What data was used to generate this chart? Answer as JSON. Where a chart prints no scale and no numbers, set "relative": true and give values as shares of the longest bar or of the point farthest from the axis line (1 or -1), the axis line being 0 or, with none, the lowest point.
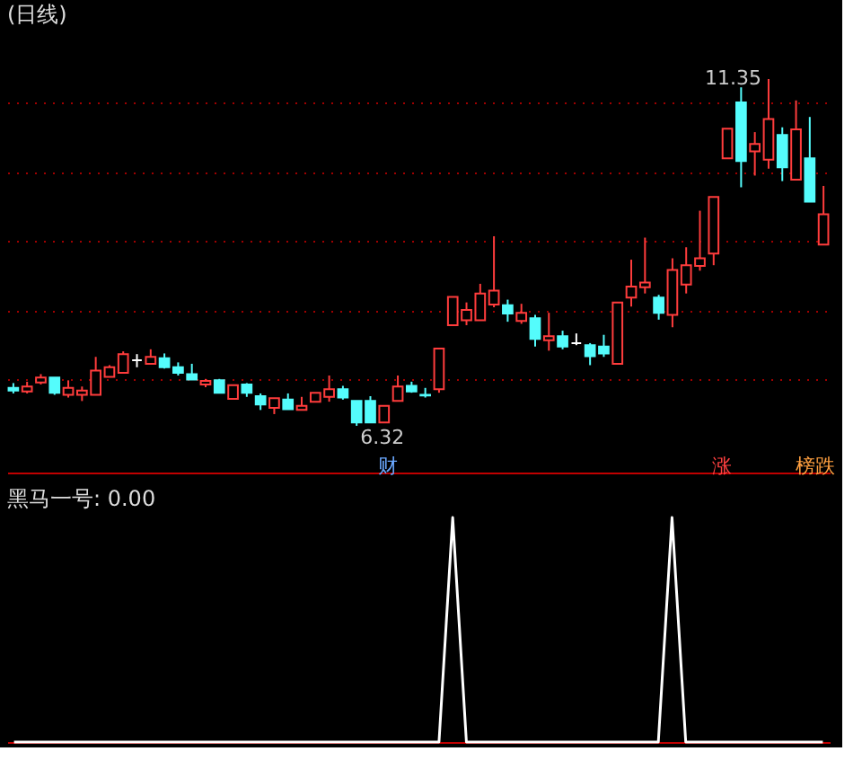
{
  "chart_data": [
    {
      "type": "candlestick",
      "title": "(日线)",
      "categories": [
        null,
        null,
        null,
        null,
        null,
        null,
        null,
        null,
        null,
        null,
        null,
        null,
        null,
        null,
        null,
        null,
        null,
        null,
        null,
        null,
        null,
        null,
        null,
        null,
        null,
        null,
        null,
        null,
        null,
        null,
        null,
        null,
        null,
        null,
        null,
        null,
        null,
        null,
        null,
        null,
        null,
        null,
        null,
        null,
        null,
        null,
        null,
        null,
        null,
        null,
        null,
        null,
        null,
        null,
        null,
        null,
        null,
        null,
        null,
        null
      ],
      "ohlc": [
        [
          6.87,
          6.94,
          6.79,
          6.83
        ],
        [
          6.82,
          6.96,
          6.79,
          6.89
        ],
        [
          6.95,
          7.07,
          6.92,
          7.02
        ],
        [
          7.02,
          7.02,
          6.77,
          6.8
        ],
        [
          6.77,
          6.98,
          6.73,
          6.87
        ],
        [
          6.77,
          6.89,
          6.68,
          6.83
        ],
        [
          6.77,
          7.32,
          6.77,
          7.12
        ],
        [
          7.03,
          7.2,
          7.03,
          7.17
        ],
        [
          7.09,
          7.4,
          7.09,
          7.36
        ],
        [
          7.27,
          7.36,
          7.17,
          7.27
        ],
        [
          7.22,
          7.43,
          7.22,
          7.32
        ],
        [
          7.3,
          7.37,
          7.15,
          7.17
        ],
        [
          7.17,
          7.24,
          7.05,
          7.09
        ],
        [
          7.07,
          7.22,
          6.99,
          6.99
        ],
        [
          6.92,
          7.0,
          6.88,
          6.97
        ],
        [
          6.98,
          7.0,
          6.8,
          6.8
        ],
        [
          6.71,
          6.91,
          6.71,
          6.91
        ],
        [
          6.92,
          6.94,
          6.74,
          6.8
        ],
        [
          6.75,
          6.79,
          6.55,
          6.63
        ],
        [
          6.58,
          6.72,
          6.49,
          6.72
        ],
        [
          6.7,
          6.79,
          6.56,
          6.56
        ],
        [
          6.55,
          6.74,
          6.55,
          6.61
        ],
        [
          6.67,
          6.8,
          6.67,
          6.8
        ],
        [
          6.74,
          7.05,
          6.67,
          6.85
        ],
        [
          6.85,
          6.9,
          6.7,
          6.73
        ],
        [
          6.68,
          6.68,
          6.32,
          6.37
        ],
        [
          6.68,
          6.75,
          6.36,
          6.37
        ],
        [
          6.37,
          6.61,
          6.37,
          6.61
        ],
        [
          6.68,
          7.05,
          6.68,
          6.89
        ],
        [
          6.9,
          6.96,
          6.8,
          6.82
        ],
        [
          6.77,
          6.87,
          6.73,
          6.76
        ],
        [
          6.85,
          7.44,
          6.8,
          7.44
        ],
        [
          7.78,
          8.19,
          7.78,
          8.19
        ],
        [
          7.85,
          8.11,
          7.78,
          8.0
        ],
        [
          7.85,
          8.38,
          7.85,
          8.24
        ],
        [
          8.08,
          9.07,
          8.04,
          8.28
        ],
        [
          8.07,
          8.15,
          7.83,
          7.95
        ],
        [
          7.84,
          8.09,
          7.8,
          7.96
        ],
        [
          7.88,
          7.93,
          7.47,
          7.58
        ],
        [
          7.56,
          7.96,
          7.41,
          7.62
        ],
        [
          7.62,
          7.7,
          7.43,
          7.47
        ],
        [
          7.52,
          7.66,
          7.49,
          7.52
        ],
        [
          7.49,
          7.52,
          7.2,
          7.33
        ],
        [
          7.47,
          7.64,
          7.32,
          7.37
        ],
        [
          7.22,
          8.11,
          7.22,
          8.11
        ],
        [
          8.18,
          8.73,
          8.05,
          8.34
        ],
        [
          8.33,
          9.05,
          8.24,
          8.4
        ],
        [
          8.18,
          8.22,
          7.86,
          7.96
        ],
        [
          7.93,
          8.75,
          7.75,
          8.58
        ],
        [
          8.37,
          8.91,
          8.24,
          8.65
        ],
        [
          8.64,
          9.44,
          8.57,
          8.75
        ],
        [
          8.82,
          9.64,
          8.65,
          9.64
        ],
        [
          10.2,
          10.63,
          10.2,
          10.63
        ],
        [
          11.01,
          11.23,
          9.78,
          10.16
        ],
        [
          10.3,
          10.58,
          9.95,
          10.41
        ],
        [
          10.18,
          11.35,
          10.05,
          10.77
        ],
        [
          10.54,
          10.65,
          9.87,
          10.07
        ],
        [
          9.89,
          11.04,
          9.89,
          10.62
        ],
        [
          10.2,
          10.8,
          9.57,
          9.57
        ],
        [
          8.95,
          9.8,
          8.95,
          9.39
        ]
      ],
      "colors": [
        "#54fcfc",
        "#ff3c3c",
        "#ff3c3c",
        "#54fcfc",
        "#ff3c3c",
        "#ff3c3c",
        "#ff3c3c",
        "#ff3c3c",
        "#ff3c3c",
        "#ffffff",
        "#ff3c3c",
        "#54fcfc",
        "#54fcfc",
        "#54fcfc",
        "#ff3c3c",
        "#54fcfc",
        "#ff3c3c",
        "#54fcfc",
        "#54fcfc",
        "#ff3c3c",
        "#54fcfc",
        "#ff3c3c",
        "#ff3c3c",
        "#ff3c3c",
        "#54fcfc",
        "#54fcfc",
        "#54fcfc",
        "#ff3c3c",
        "#ff3c3c",
        "#54fcfc",
        "#54fcfc",
        "#ff3c3c",
        "#ff3c3c",
        "#ff3c3c",
        "#ff3c3c",
        "#ff3c3c",
        "#54fcfc",
        "#ff3c3c",
        "#54fcfc",
        "#ff3c3c",
        "#54fcfc",
        "#ffffff",
        "#54fcfc",
        "#54fcfc",
        "#ff3c3c",
        "#ff3c3c",
        "#ff3c3c",
        "#54fcfc",
        "#ff3c3c",
        "#ff3c3c",
        "#ff3c3c",
        "#ff3c3c",
        "#ff3c3c",
        "#54fcfc",
        "#ff3c3c",
        "#ff3c3c",
        "#54fcfc",
        "#ff3c3c",
        "#54fcfc",
        "#ff3c3c"
      ],
      "yticks": [
        {
          "value": 7,
          "label": null
        },
        {
          "value": 8,
          "label": null
        },
        {
          "value": 9,
          "label": null
        },
        {
          "value": 10,
          "label": null
        },
        {
          "value": 11,
          "label": null
        }
      ],
      "grid": "y",
      "tick_labels": false,
      "annotations": [
        "11.35",
        "6.32",
        "财",
        "涨",
        "榜跌"
      ]
    },
    {
      "type": "line",
      "title": "黑马一号: 0.00",
      "relative": true,
      "tick_labels": false,
      "categories": [
        null,
        null,
        null,
        null,
        null,
        null,
        null,
        null,
        null,
        null,
        null,
        null,
        null,
        null,
        null,
        null,
        null,
        null,
        null,
        null,
        null,
        null,
        null,
        null,
        null,
        null,
        null,
        null,
        null,
        null,
        null,
        null,
        null,
        null,
        null,
        null,
        null,
        null,
        null,
        null,
        null,
        null,
        null,
        null,
        null,
        null,
        null,
        null,
        null,
        null,
        null,
        null,
        null,
        null,
        null,
        null,
        null,
        null,
        null,
        null
      ],
      "series": [
        {
          "color": "#ffffff",
          "values": [
            0,
            0,
            0,
            0,
            0,
            0,
            0,
            0,
            0,
            0,
            0,
            0,
            0,
            0,
            0,
            0,
            0,
            0,
            0,
            0,
            0,
            0,
            0,
            0,
            0,
            0,
            0,
            0,
            0,
            0,
            0,
            0,
            1,
            0,
            0,
            0,
            0,
            0,
            0,
            0,
            0,
            0,
            0,
            0,
            0,
            0,
            0,
            0,
            1,
            0,
            0,
            0,
            0,
            0,
            0,
            0,
            0,
            0,
            0,
            0
          ]
        }
      ]
    }
  ]
}
